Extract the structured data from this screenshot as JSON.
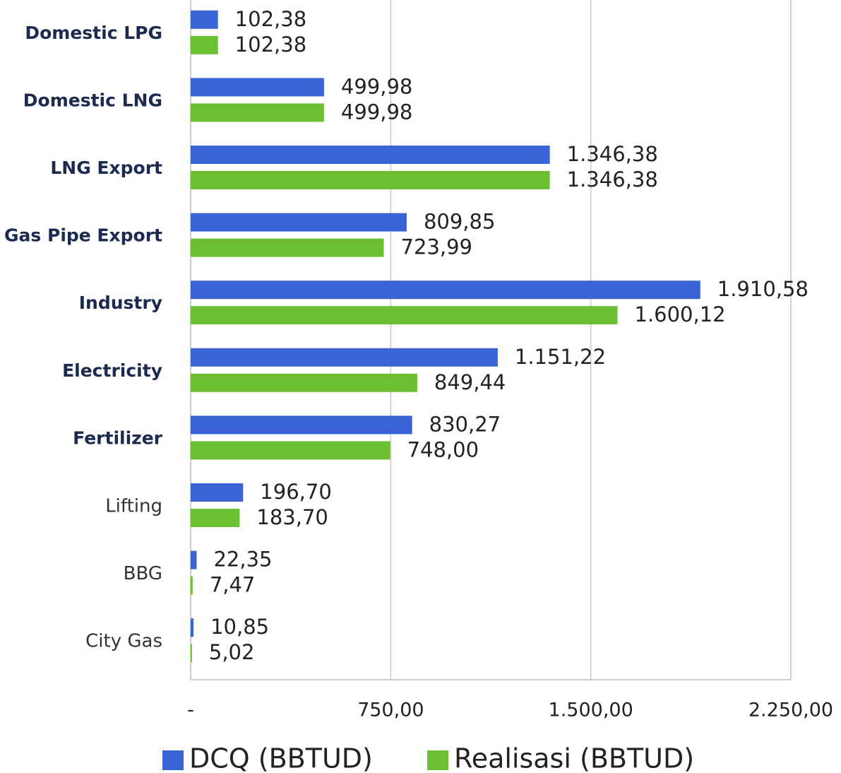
{
  "chart_data": {
    "type": "bar",
    "orientation": "horizontal",
    "categories": [
      "Domestic LPG",
      "Domestic LNG",
      "LNG Export",
      "Gas Pipe Export",
      "Industry",
      "Electricity",
      "Fertilizer",
      "Lifting",
      "BBG",
      "City Gas"
    ],
    "series": [
      {
        "name": "DCQ  (BBTUD)",
        "color": "#3a63d6",
        "values": [
          102.38,
          499.98,
          1346.38,
          809.85,
          1910.58,
          1151.22,
          830.27,
          196.7,
          22.35,
          10.85
        ],
        "value_labels": [
          "102,38",
          "499,98",
          "1.346,38",
          "809,85",
          "1.910,58",
          "1.151,22",
          "830,27",
          "196,70",
          "22,35",
          "10,85"
        ]
      },
      {
        "name": "Realisasi (BBTUD)",
        "color": "#6cbf33",
        "values": [
          102.38,
          499.98,
          1346.38,
          723.99,
          1600.12,
          849.44,
          748.0,
          183.7,
          7.47,
          5.02
        ],
        "value_labels": [
          "102,38",
          "499,98",
          "1.346,38",
          "723,99",
          "1.600,12",
          "849,44",
          "748,00",
          "183,70",
          "7,47",
          "5,02"
        ]
      }
    ],
    "xlim": [
      0,
      2250
    ],
    "xticks": [
      {
        "value": 0,
        "label": "-"
      },
      {
        "value": 750,
        "label": "750,00"
      },
      {
        "value": 1500,
        "label": "1.500,00"
      },
      {
        "value": 2250,
        "label": "2.250,00"
      }
    ],
    "grid": true,
    "legend": "bottom"
  }
}
